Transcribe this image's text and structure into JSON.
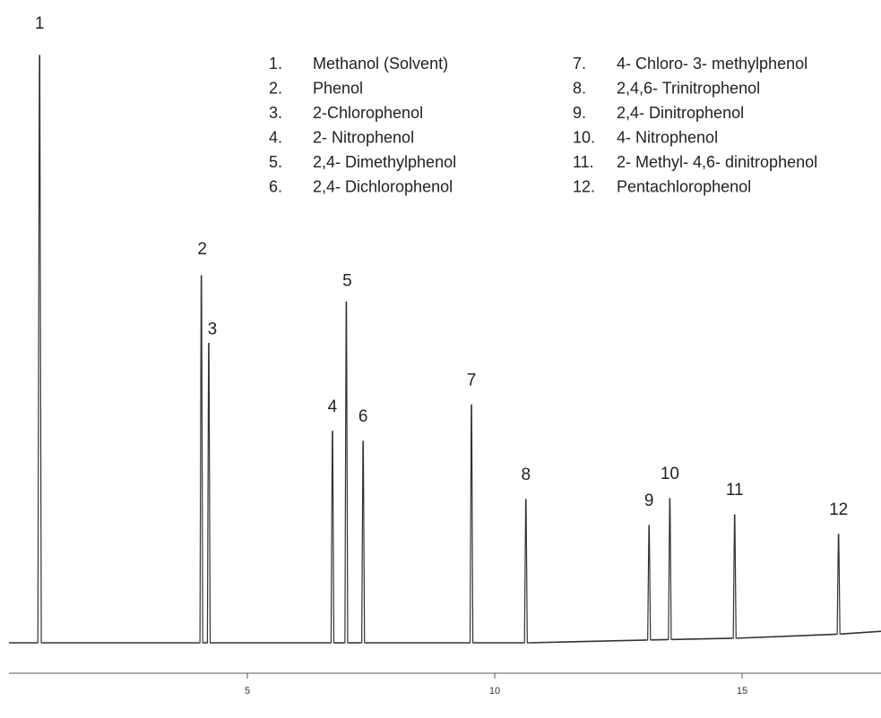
{
  "chart_data": {
    "type": "line",
    "title": "",
    "xlabel": "",
    "ylabel": "",
    "xlim": [
      0,
      17.9
    ],
    "x_ticks": [
      "5",
      "10",
      "15"
    ],
    "grid": false,
    "line_color": "#333333",
    "peaks": [
      {
        "label": "1",
        "name": "Methanol (Solvent)",
        "rt": 0.8,
        "height": 1.0
      },
      {
        "label": "2",
        "name": "Phenol",
        "rt": 4.07,
        "height": 0.625
      },
      {
        "label": "3",
        "name": "2-Chlorophenol",
        "rt": 4.22,
        "height": 0.51
      },
      {
        "label": "4",
        "name": "2- Nitrophenol",
        "rt": 6.72,
        "height": 0.36
      },
      {
        "label": "5",
        "name": "2,4- Dimethylphenol",
        "rt": 7.0,
        "height": 0.58
      },
      {
        "label": "6",
        "name": "2,4- Dichlorophenol",
        "rt": 7.34,
        "height": 0.343
      },
      {
        "label": "7",
        "name": "4- Chloro- 3- methylphenol",
        "rt": 9.53,
        "height": 0.405
      },
      {
        "label": "8",
        "name": "2,4,6- Trinitrophenol",
        "rt": 10.63,
        "height": 0.244
      },
      {
        "label": "9",
        "name": "2,4- Dinitrophenol",
        "rt": 13.12,
        "height": 0.195
      },
      {
        "label": "10",
        "name": "4- Nitrophenol",
        "rt": 13.54,
        "height": 0.24
      },
      {
        "label": "11",
        "name": "2- Methyl- 4,6- dinitrophenol",
        "rt": 14.85,
        "height": 0.21
      },
      {
        "label": "12",
        "name": "Pentachlorophenol",
        "rt": 16.95,
        "height": 0.17
      }
    ],
    "baseline": [
      {
        "x": 0.0,
        "y": 0.0
      },
      {
        "x": 12.0,
        "y": 0.0
      },
      {
        "x": 12.1,
        "y": 0.003
      },
      {
        "x": 15.0,
        "y": 0.008
      },
      {
        "x": 16.0,
        "y": 0.01
      },
      {
        "x": 17.0,
        "y": 0.015
      },
      {
        "x": 17.9,
        "y": 0.02
      }
    ],
    "legend": {
      "placement": "top",
      "columns": [
        [
          {
            "num": "1.",
            "text": "Methanol (Solvent)"
          },
          {
            "num": "2.",
            "text": "Phenol"
          },
          {
            "num": "3.",
            "text": "2-Chlorophenol"
          },
          {
            "num": "4.",
            "text": "2- Nitrophenol"
          },
          {
            "num": "5.",
            "text": "2,4- Dimethylphenol"
          },
          {
            "num": "6.",
            "text": "2,4- Dichlorophenol"
          }
        ],
        [
          {
            "num": "7.",
            "text": "4- Chloro- 3- methylphenol"
          },
          {
            "num": "8.",
            "text": "2,4,6- Trinitrophenol"
          },
          {
            "num": "9.",
            "text": "2,4- Dinitrophenol"
          },
          {
            "num": "10.",
            "text": "4- Nitrophenol"
          },
          {
            "num": "11.",
            "text": "2- Methyl- 4,6- dinitrophenol"
          },
          {
            "num": "12.",
            "text": "Pentachlorophenol"
          }
        ]
      ]
    }
  }
}
